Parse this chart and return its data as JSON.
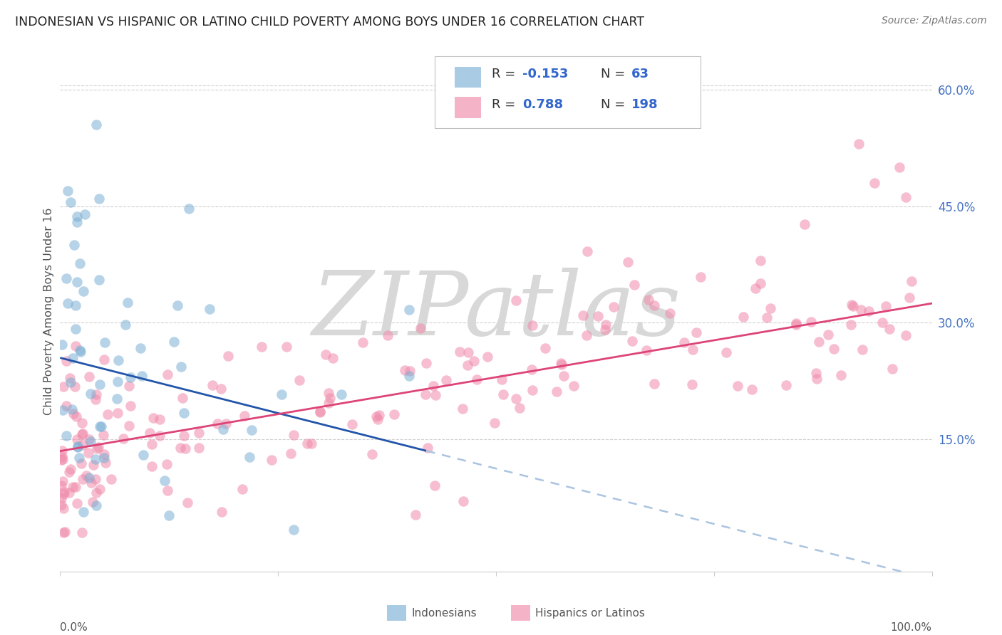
{
  "title": "INDONESIAN VS HISPANIC OR LATINO CHILD POVERTY AMONG BOYS UNDER 16 CORRELATION CHART",
  "source": "Source: ZipAtlas.com",
  "ylabel": "Child Poverty Among Boys Under 16",
  "background_color": "#ffffff",
  "watermark": "ZIPatlas",
  "watermark_color": "#d8d8d8",
  "indonesian_color": "#7bafd4",
  "hispanic_color": "#f08aaa",
  "trend_indonesian_color": "#2255aa",
  "trend_hispanic_color": "#dd4477",
  "trend_indonesian_dashed_color": "#aac4e0",
  "R_indonesian": -0.153,
  "N_indonesian": 63,
  "R_hispanic": 0.788,
  "N_hispanic": 198,
  "xmin": 0.0,
  "xmax": 1.0,
  "ymin": -0.02,
  "ymax": 0.65,
  "ytick_positions": [
    0.15,
    0.3,
    0.45,
    0.6
  ],
  "ytick_labels": [
    "15.0%",
    "30.0%",
    "45.0%",
    "60.0%"
  ],
  "ind_trend_x0": 0.0,
  "ind_trend_y0": 0.255,
  "ind_trend_x1": 1.0,
  "ind_trend_y1": -0.03,
  "ind_trend_solid_end": 0.42,
  "hisp_trend_x0": 0.0,
  "hisp_trend_y0": 0.135,
  "hisp_trend_x1": 1.0,
  "hisp_trend_y1": 0.325
}
